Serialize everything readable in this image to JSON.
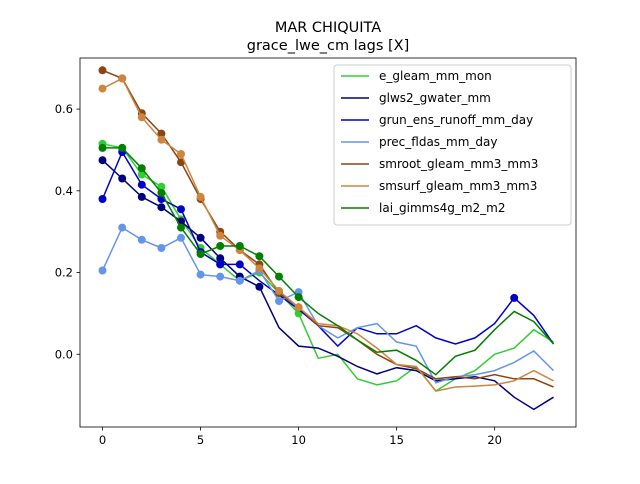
{
  "chart_data": {
    "type": "line",
    "title": "MAR CHIQUITA",
    "subtitle": "grace_lwe_cm lags [X]",
    "xlabel": "",
    "ylabel": "",
    "xlim": [
      -1.15,
      24.15
    ],
    "ylim": [
      -0.178,
      0.725
    ],
    "xticks": [
      0,
      5,
      10,
      15,
      20
    ],
    "yticks": [
      0.0,
      0.2,
      0.4,
      0.6
    ],
    "ytick_labels": [
      "0.0",
      "0.2",
      "0.4",
      "0.6"
    ],
    "grid": false,
    "legend_position": "upper right",
    "x": [
      0,
      1,
      2,
      3,
      4,
      5,
      6,
      7,
      8,
      9,
      10,
      11,
      12,
      13,
      14,
      15,
      16,
      17,
      18,
      19,
      20,
      21,
      22,
      23
    ],
    "series": [
      {
        "name": "e_gleam_mm_mon",
        "color": "#32cd32",
        "values": [
          0.515,
          0.505,
          0.44,
          0.41,
          0.33,
          0.26,
          0.22,
          0.18,
          0.2,
          0.15,
          0.1,
          -0.01,
          0.0,
          -0.06,
          -0.075,
          -0.065,
          -0.03,
          -0.09,
          -0.06,
          -0.04,
          0.0,
          0.015,
          0.06,
          0.03
        ],
        "marker_count": 11
      },
      {
        "name": "glws2_gwater_mm",
        "color": "#000080",
        "values": [
          0.475,
          0.43,
          0.385,
          0.36,
          0.325,
          0.285,
          0.235,
          0.19,
          0.165,
          0.065,
          0.02,
          0.015,
          -0.005,
          -0.03,
          -0.048,
          -0.033,
          -0.04,
          -0.065,
          -0.06,
          -0.055,
          -0.065,
          -0.105,
          -0.135,
          -0.105
        ],
        "marker_count": 9
      },
      {
        "name": "grun_ens_runoff_mm_day",
        "color": "#0000cd",
        "values": [
          0.38,
          0.495,
          0.415,
          0.38,
          0.355,
          0.25,
          0.22,
          0.22,
          0.18,
          0.145,
          0.11,
          0.07,
          0.02,
          0.065,
          0.05,
          0.05,
          0.07,
          0.04,
          0.025,
          0.04,
          0.075,
          0.138,
          0.095,
          0.025
        ],
        "marker_count": 8,
        "extra_markers": [
          21
        ]
      },
      {
        "name": "prec_fldas_mm_day",
        "color": "#6495ed",
        "values": [
          0.205,
          0.31,
          0.28,
          0.26,
          0.285,
          0.195,
          0.19,
          0.18,
          0.205,
          0.13,
          0.152,
          0.07,
          0.04,
          0.065,
          0.075,
          0.03,
          0.02,
          -0.07,
          -0.055,
          -0.05,
          -0.04,
          -0.02,
          0.008,
          -0.04
        ],
        "marker_count": 11
      },
      {
        "name": "smroot_gleam_mm3_mm3",
        "color": "#8b4513",
        "values": [
          0.695,
          0.675,
          0.59,
          0.54,
          0.47,
          0.38,
          0.3,
          0.255,
          0.22,
          0.15,
          0.115,
          0.07,
          0.065,
          0.035,
          0.0,
          -0.025,
          -0.035,
          -0.06,
          -0.055,
          -0.06,
          -0.05,
          -0.06,
          -0.06,
          -0.08
        ],
        "marker_count": 11
      },
      {
        "name": "smsurf_gleam_mm3_mm3",
        "color": "#cd853f",
        "values": [
          0.65,
          0.675,
          0.58,
          0.525,
          0.49,
          0.385,
          0.29,
          0.255,
          0.21,
          0.155,
          0.115,
          0.075,
          0.07,
          0.05,
          0.015,
          -0.025,
          -0.03,
          -0.09,
          -0.08,
          -0.078,
          -0.075,
          -0.065,
          -0.04,
          -0.065
        ],
        "marker_count": 11
      },
      {
        "name": "lai_gimms4g_m2_m2",
        "color": "#008000",
        "values": [
          0.505,
          0.505,
          0.455,
          0.395,
          0.31,
          0.245,
          0.265,
          0.265,
          0.24,
          0.19,
          0.14,
          0.1,
          0.07,
          0.035,
          0.005,
          0.01,
          -0.015,
          -0.05,
          -0.005,
          0.01,
          0.06,
          0.105,
          0.08,
          0.025
        ],
        "marker_count": 11
      }
    ]
  }
}
